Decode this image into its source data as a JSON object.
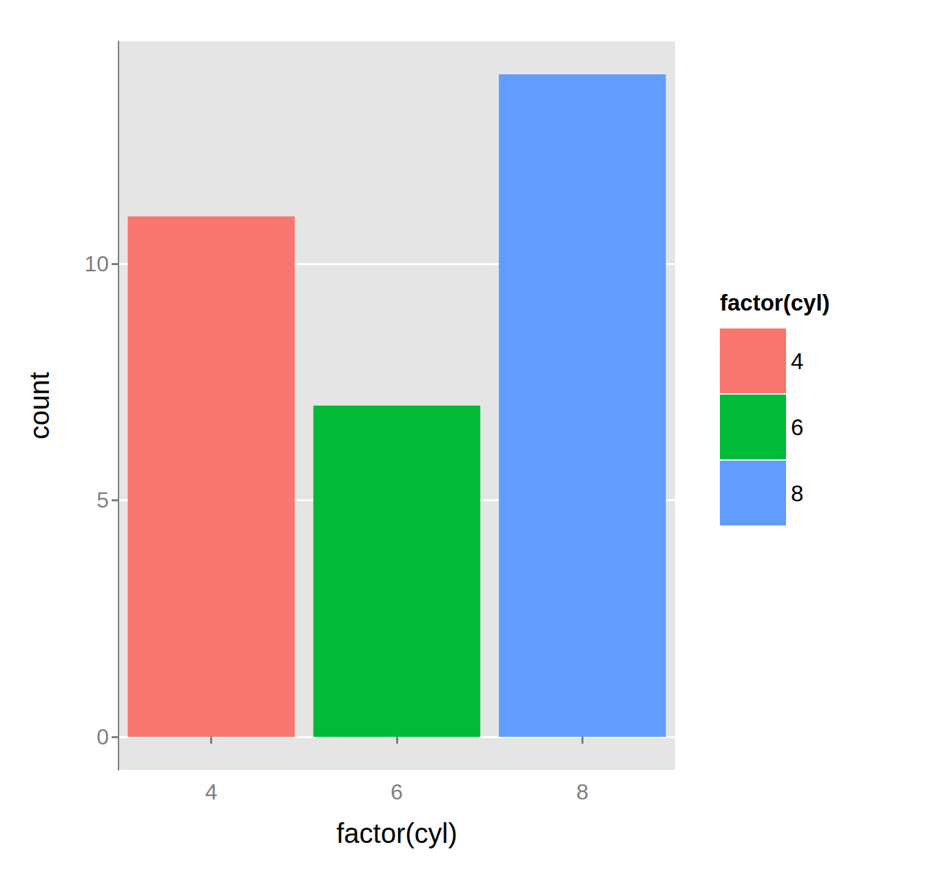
{
  "chart_data": {
    "type": "bar",
    "x_label": "factor(cyl)",
    "y_label": "count",
    "legend_title": "factor(cyl)",
    "categories": [
      "4",
      "6",
      "8"
    ],
    "values": [
      11,
      7,
      14
    ],
    "colors": [
      "#F8766D",
      "#00BA38",
      "#619CFF"
    ],
    "ylim": [
      -0.7,
      14.7
    ],
    "yticks": [
      0,
      5,
      10
    ],
    "grid": true,
    "legend": "right"
  }
}
